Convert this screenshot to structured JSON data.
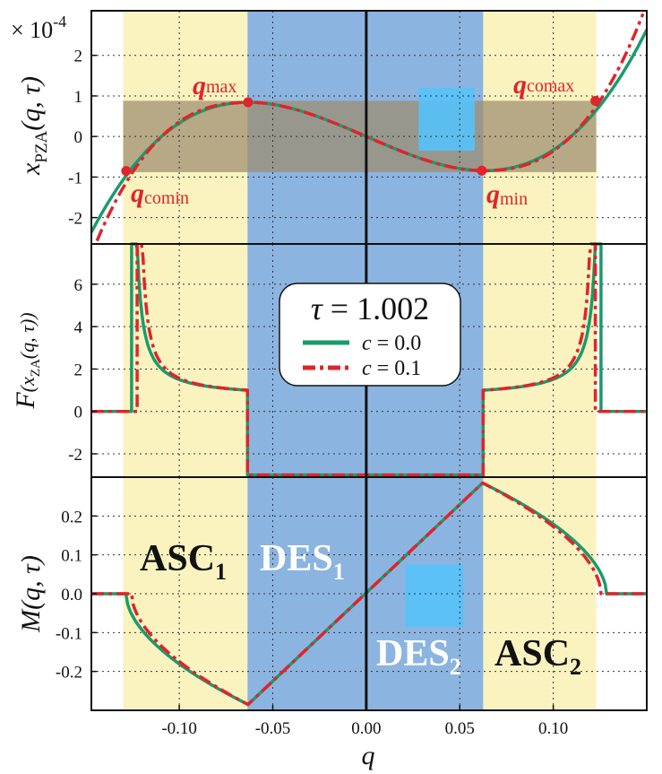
{
  "chart_data": [
    {
      "panel": "top",
      "type": "line",
      "ylabel_main": "x",
      "ylabel_sub": "PZA",
      "ylabel_args": "(q, τ)",
      "y_multiplier": "× 10",
      "y_multiplier_exp": "-4",
      "xlim": [
        -0.147,
        0.15
      ],
      "ylim": [
        -2.65,
        3.1
      ],
      "yticks": [
        -2,
        -1,
        0,
        1,
        2
      ],
      "ytick_labels": [
        "-2",
        "-1",
        "0",
        "1",
        "2"
      ],
      "series": [
        {
          "name": "c = 0.0",
          "color": "#1a9b6e",
          "style": "solid",
          "coeff_a": 2.0,
          "coeff_b": 14236
        },
        {
          "name": "c = 0.1",
          "color": "#e0242a",
          "style": "dashdot",
          "coeff_a": 2.0,
          "coeff_b": 14236
        }
      ],
      "points": [
        {
          "main": "q",
          "sub": "max",
          "x": -0.0632,
          "y": 0.843
        },
        {
          "main": "q",
          "sub": "min",
          "x": 0.0618,
          "y": -0.843
        },
        {
          "main": "q",
          "sub": "comin",
          "x": -0.1284,
          "y": -0.85
        },
        {
          "main": "q",
          "sub": "comax",
          "x": 0.1225,
          "y": 0.88
        }
      ]
    },
    {
      "panel": "middle",
      "type": "line",
      "ylabel_main": "F",
      "ylabel_inner": "(x",
      "ylabel_inner_sub": "ZA",
      "ylabel_inner_args": "(q, τ))",
      "ylim": [
        -3.1,
        7.9
      ],
      "yticks": [
        -2,
        0,
        2,
        4,
        6
      ],
      "ytick_labels": [
        "-2",
        "0",
        "2",
        "4",
        "6"
      ],
      "legend": {
        "title_symbol": "τ",
        "title_value": "= 1.002",
        "entries": [
          {
            "label_sym": "c",
            "label_val": "= 0.0",
            "color": "#1a9b6e",
            "style": "solid"
          },
          {
            "label_sym": "c",
            "label_val": "= 0.1",
            "color": "#e0242a",
            "style": "dashdot"
          }
        ],
        "placement": "center"
      }
    },
    {
      "panel": "bottom",
      "type": "line",
      "ylabel_main": "M",
      "ylabel_args": "(q, τ)",
      "ylim": [
        -0.3,
        0.3
      ],
      "yticks": [
        -0.2,
        -0.1,
        0.0,
        0.1,
        0.2
      ],
      "ytick_labels": [
        "-0.2",
        "-0.1",
        "0.0",
        "0.1",
        "0.2"
      ],
      "xticks": [
        -0.1,
        -0.05,
        0.0,
        0.05,
        0.1
      ],
      "xtick_labels": [
        "-0.10",
        "-0.05",
        "0.00",
        "0.05",
        "0.10"
      ],
      "xlabel": "q",
      "regions": [
        {
          "main": "ASC",
          "sub": "1",
          "color": "#111111"
        },
        {
          "main": "DES",
          "sub": "1",
          "color": "#ffffff"
        },
        {
          "main": "DES",
          "sub": "2",
          "color": "#ffffff"
        },
        {
          "main": "ASC",
          "sub": "2",
          "color": "#111111"
        }
      ]
    }
  ],
  "bands": {
    "yellow": {
      "x0": -0.13,
      "x1": 0.123,
      "color": "#faf3c0"
    },
    "blue": {
      "x0": -0.0635,
      "x1": 0.0625,
      "color": "#8cb4e0"
    },
    "gray_band_y": [
      -0.88,
      0.88
    ],
    "gray_color": "#9c8c6e",
    "cyan_color": "#55c2fa"
  },
  "grid": true
}
